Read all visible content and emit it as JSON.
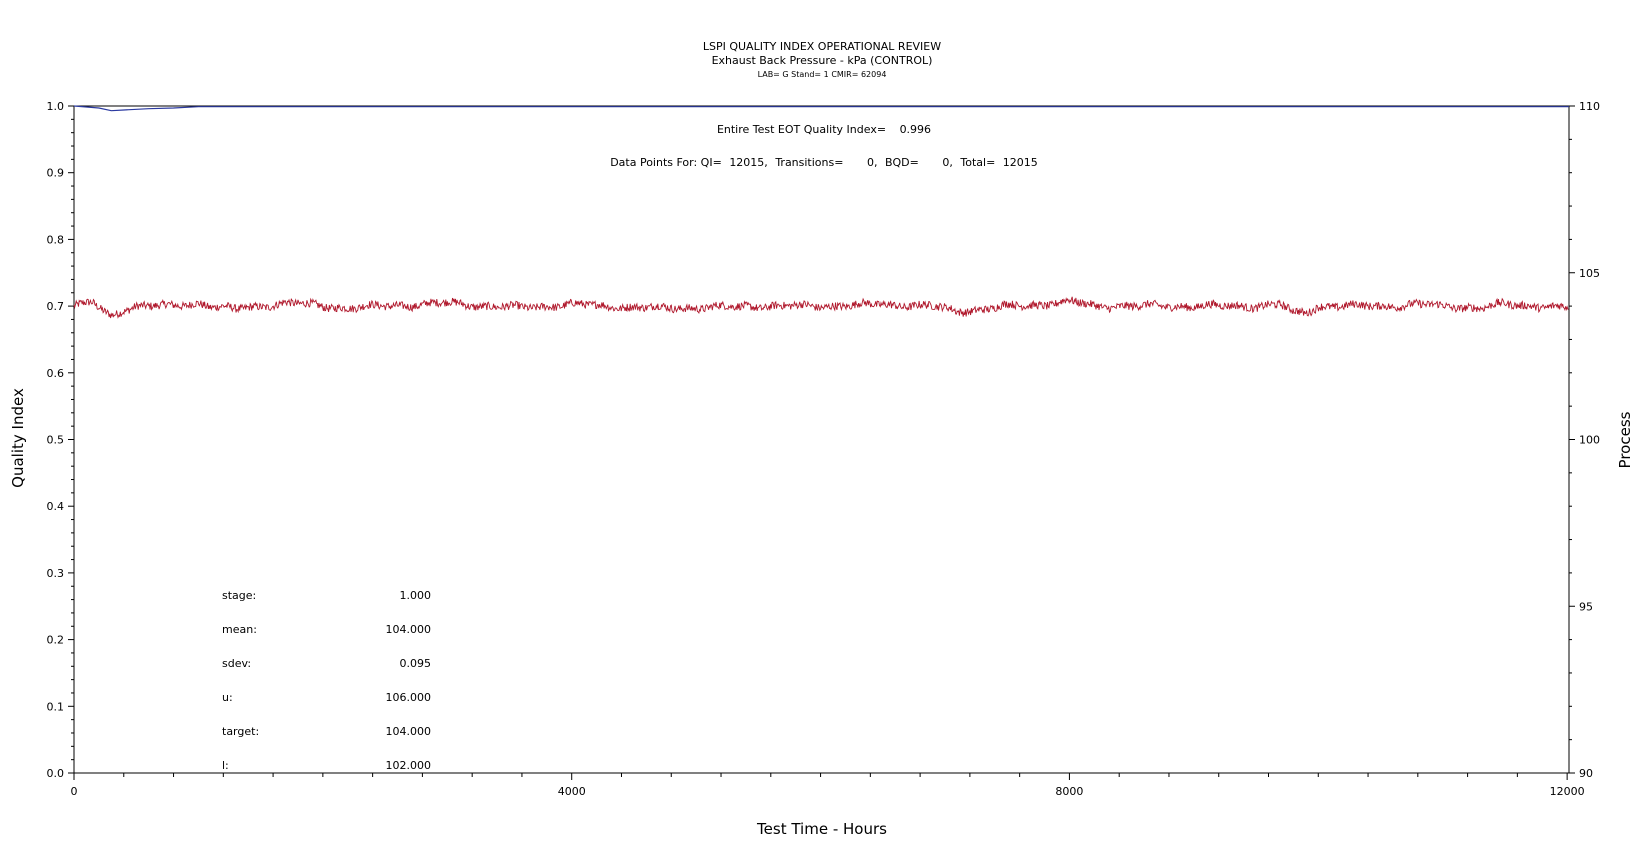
{
  "chart_data": {
    "type": "line",
    "title": "LSPI QUALITY INDEX OPERATIONAL REVIEW",
    "subtitle": "Exhaust Back Pressure - kPa (CONTROL)",
    "subsubtitle": "LAB= G Stand= 1 CMIR= 62094",
    "xlabel": "Test Time - Hours",
    "ylabel_left": "Quality Index",
    "ylabel_right": "Process",
    "xlim": [
      0,
      12015
    ],
    "ylim_left": [
      0.0,
      1.0
    ],
    "ylim_right": [
      90,
      110
    ],
    "xticks": [
      "0",
      "4000",
      "8000",
      "12000"
    ],
    "yticks_left": [
      "0.0",
      "0.1",
      "0.2",
      "0.3",
      "0.4",
      "0.5",
      "0.6",
      "0.7",
      "0.8",
      "0.9",
      "1.0"
    ],
    "yticks_right": [
      "90",
      "95",
      "100",
      "105",
      "110"
    ],
    "grid": false,
    "annotations": {
      "eot_label": "Entire Test EOT Quality Index=",
      "eot_value": "0.996",
      "points_prefix": "Data Points For: QI=",
      "qi_count": "12015,",
      "transitions_label": "Transitions=",
      "transitions_value": "0,",
      "bqd_label": "BQD=",
      "bqd_value": "0,",
      "total_label": "Total=",
      "total_value": "12015"
    },
    "stats": [
      {
        "label": "stage:",
        "value": "1.000"
      },
      {
        "label": "mean:",
        "value": "104.000"
      },
      {
        "label": "sdev:",
        "value": "0.095"
      },
      {
        "label": "u:",
        "value": "106.000"
      },
      {
        "label": "target:",
        "value": "104.000"
      },
      {
        "label": "l:",
        "value": "102.000"
      }
    ],
    "series": [
      {
        "axis": "left",
        "color": "#2b3aa0",
        "x": [
          0,
          200,
          300,
          400,
          600,
          800,
          1000,
          12015
        ],
        "y": [
          1.0,
          0.997,
          0.993,
          0.994,
          0.996,
          0.997,
          0.999,
          0.999
        ]
      },
      {
        "axis": "right",
        "color": "#b0182c",
        "noise_amplitude": 0.12,
        "x": [
          0,
          150,
          250,
          300,
          400,
          500,
          800,
          1000,
          1100,
          1300,
          1500,
          1700,
          2000,
          2200,
          2500,
          2800,
          3000,
          3300,
          3600,
          4000,
          4300,
          4600,
          5000,
          5500,
          6000,
          6500,
          6900,
          7100,
          7300,
          7500,
          7800,
          8000,
          8200,
          8500,
          9000,
          9500,
          9700,
          9800,
          9900,
          10000,
          10200,
          10500,
          10800,
          11000,
          11300,
          11500,
          11800,
          12015
        ],
        "y": [
          104.0,
          104.1,
          103.8,
          103.7,
          103.9,
          104.0,
          104.0,
          104.1,
          104.0,
          103.9,
          104.0,
          104.1,
          104.0,
          103.95,
          104.0,
          104.05,
          104.1,
          104.0,
          103.95,
          104.05,
          104.0,
          103.95,
          103.95,
          104.0,
          104.0,
          104.05,
          104.0,
          103.85,
          103.9,
          104.0,
          104.05,
          104.15,
          104.0,
          104.0,
          104.0,
          104.0,
          104.05,
          103.8,
          103.8,
          104.0,
          104.0,
          104.0,
          104.05,
          104.0,
          103.95,
          104.05,
          104.0,
          103.95
        ]
      }
    ]
  }
}
